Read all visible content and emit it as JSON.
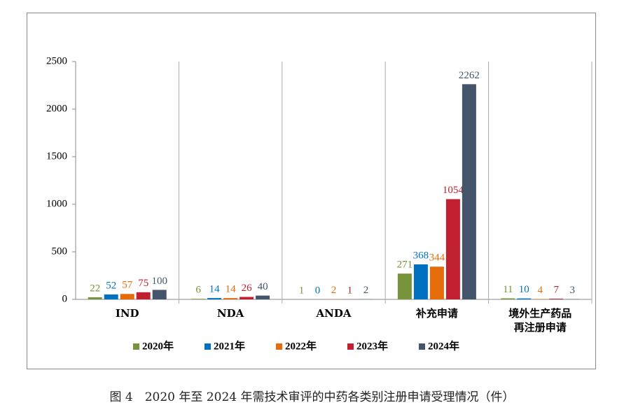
{
  "chart_data": {
    "type": "bar",
    "categories": [
      "IND",
      "NDA",
      "ANDA",
      "补充申请",
      "境外生产药品再注册申请"
    ],
    "series": [
      {
        "name": "2020年",
        "color": "#77933c",
        "values": [
          22,
          6,
          1,
          271,
          11
        ]
      },
      {
        "name": "2021年",
        "color": "#0070c0",
        "values": [
          52,
          14,
          0,
          368,
          10
        ]
      },
      {
        "name": "2022年",
        "color": "#e46c0a",
        "values": [
          57,
          14,
          2,
          344,
          4
        ]
      },
      {
        "name": "2023年",
        "color": "#c0202f",
        "values": [
          75,
          26,
          1,
          1054,
          7
        ]
      },
      {
        "name": "2024年",
        "color": "#44546a",
        "values": [
          100,
          40,
          2,
          2262,
          3
        ]
      }
    ],
    "ylim": [
      0,
      2500
    ],
    "yticks": [
      0,
      500,
      1000,
      1500,
      2000,
      2500
    ]
  },
  "caption": "图 4　2020 年至 2024 年需技术审评的中药各类别注册申请受理情况（件）"
}
